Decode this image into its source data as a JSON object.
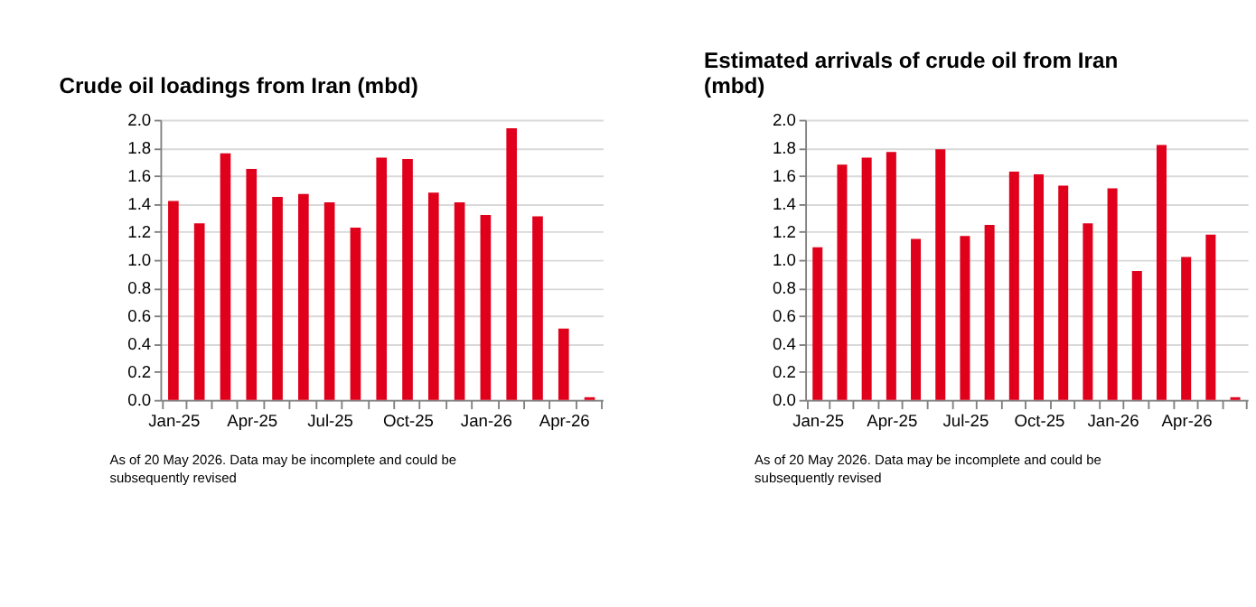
{
  "chart_data": [
    {
      "type": "bar",
      "title": "Crude oil loadings from Iran (mbd)",
      "categories": [
        "Jan-25",
        null,
        null,
        "Apr-25",
        null,
        null,
        "Jul-25",
        null,
        null,
        "Oct-25",
        null,
        null,
        "Jan-26",
        null,
        null,
        "Apr-26",
        null
      ],
      "series": [
        {
          "color": "#e0001b",
          "values": [
            1.42,
            1.26,
            1.76,
            1.65,
            1.45,
            1.47,
            1.41,
            1.23,
            1.73,
            1.72,
            1.48,
            1.41,
            1.32,
            1.94,
            1.31,
            0.51,
            0.02
          ]
        }
      ],
      "ylim": [
        0,
        2
      ],
      "yticks": [
        {
          "value": 0,
          "label": "0.0"
        },
        {
          "value": 0.2,
          "label": "0.2"
        },
        {
          "value": 0.4,
          "label": "0.4"
        },
        {
          "value": 0.6,
          "label": "0.6"
        },
        {
          "value": 0.8,
          "label": "0.8"
        },
        {
          "value": 1,
          "label": "1.0"
        },
        {
          "value": 1.2,
          "label": "1.2"
        },
        {
          "value": 1.4,
          "label": "1.4"
        },
        {
          "value": 1.6,
          "label": "1.6"
        },
        {
          "value": 1.8,
          "label": "1.8"
        },
        {
          "value": 2,
          "label": "2.0"
        }
      ],
      "grid": "y",
      "legend": false,
      "annotations": [
        "As of 20 May 2026. Data may be incomplete and could be subsequently revised"
      ]
    },
    {
      "type": "bar",
      "title": "Estimated arrivals of crude oil from Iran (mbd)",
      "categories": [
        "Jan-25",
        null,
        null,
        "Apr-25",
        null,
        null,
        "Jul-25",
        null,
        null,
        "Oct-25",
        null,
        null,
        "Jan-26",
        null,
        null,
        "Apr-26",
        null,
        null
      ],
      "series": [
        {
          "color": "#e0001b",
          "values": [
            1.09,
            1.68,
            1.73,
            1.77,
            1.15,
            1.79,
            1.17,
            1.25,
            1.63,
            1.61,
            1.53,
            1.26,
            1.51,
            0.92,
            1.82,
            1.02,
            1.18,
            0.02
          ]
        }
      ],
      "ylim": [
        0,
        2
      ],
      "yticks": [
        {
          "value": 0,
          "label": "0.0"
        },
        {
          "value": 0.2,
          "label": "0.2"
        },
        {
          "value": 0.4,
          "label": "0.4"
        },
        {
          "value": 0.6,
          "label": "0.6"
        },
        {
          "value": 0.8,
          "label": "0.8"
        },
        {
          "value": 1,
          "label": "1.0"
        },
        {
          "value": 1.2,
          "label": "1.2"
        },
        {
          "value": 1.4,
          "label": "1.4"
        },
        {
          "value": 1.6,
          "label": "1.6"
        },
        {
          "value": 1.8,
          "label": "1.8"
        },
        {
          "value": 2,
          "label": "2.0"
        }
      ],
      "grid": "y",
      "legend": false,
      "annotations": [
        "As of 20 May 2026. Data may be incomplete and could be subsequently revised"
      ]
    }
  ]
}
